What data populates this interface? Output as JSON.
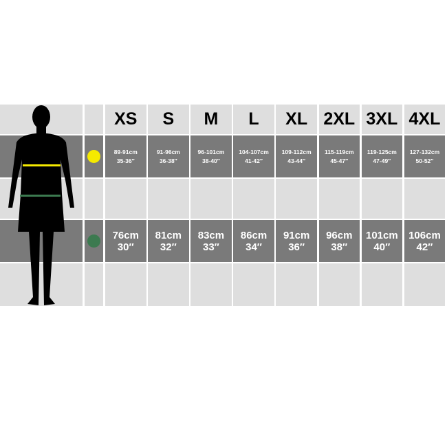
{
  "sizes": [
    "XS",
    "S",
    "M",
    "L",
    "XL",
    "2XL",
    "3XL",
    "4XL"
  ],
  "chest": {
    "color": "#f5ea00",
    "cm": [
      "89-91cm",
      "91-96cm",
      "96-101cm",
      "104-107cm",
      "109-112cm",
      "115-119cm",
      "119-125cm",
      "127-132cm"
    ],
    "in": [
      "35-36″",
      "36-38″",
      "38-40″",
      "41-42″",
      "43-44″",
      "45-47″",
      "47-49″",
      "50-52″"
    ]
  },
  "waist": {
    "color": "#3c7a50",
    "cm": [
      "76cm",
      "81cm",
      "83cm",
      "86cm",
      "91cm",
      "96cm",
      "101cm",
      "106cm"
    ],
    "in": [
      "30″",
      "32″",
      "33″",
      "34″",
      "36″",
      "38″",
      "40″",
      "42″"
    ]
  }
}
